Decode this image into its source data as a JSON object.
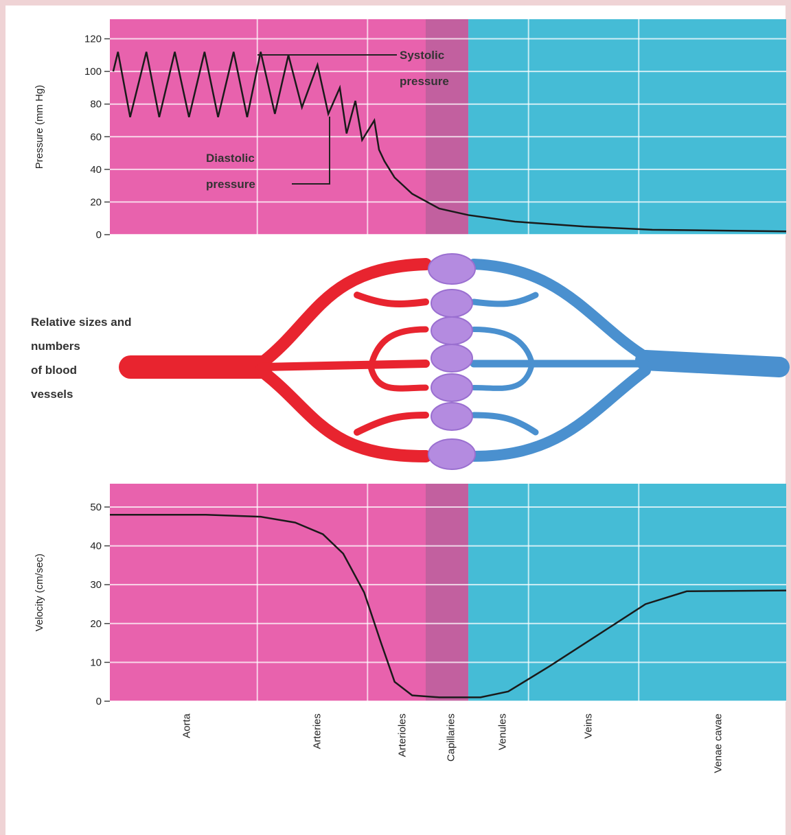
{
  "chart_data": [
    {
      "type": "line",
      "ylabel": "Pressure (mm Hg)",
      "ylim": [
        0,
        132
      ],
      "yticks": [
        0,
        20,
        40,
        60,
        80,
        100,
        120
      ],
      "xlim": [
        0,
        100
      ],
      "regions": [
        {
          "from": 0,
          "to": 46.7,
          "color": "#e862ad"
        },
        {
          "from": 46.7,
          "to": 53,
          "color": "#c2609f"
        },
        {
          "from": 53,
          "to": 100,
          "color": "#45bcd6"
        }
      ],
      "series": [
        {
          "color": "#1a1a1a",
          "x": [
            0.5,
            1.2,
            3.0,
            5.4,
            7.3,
            9.6,
            11.7,
            14.0,
            16.0,
            18.3,
            20.3,
            22.3,
            24.4,
            26.4,
            28.4,
            30.7,
            32.3,
            34.0,
            35.0,
            36.3,
            37.3,
            39.1,
            39.8,
            40.6,
            42.1,
            44.7,
            48.7,
            53.0,
            59.9,
            70.1,
            80.2,
            100
          ],
          "values": [
            100,
            112,
            72,
            112,
            72,
            112,
            72,
            112,
            72,
            112,
            72,
            112,
            74,
            110,
            78,
            104,
            74,
            90,
            62,
            82,
            58,
            70,
            52,
            45,
            35,
            25,
            16,
            12,
            8,
            5,
            3,
            2
          ]
        }
      ],
      "annotations": [
        [
          "Systolic",
          "pressure"
        ],
        [
          "Diastolic",
          "pressure"
        ]
      ]
    },
    {
      "type": "line",
      "ylabel": "Velocity (cm/sec)",
      "ylim": [
        0,
        56
      ],
      "yticks": [
        0,
        10,
        20,
        30,
        40,
        50
      ],
      "xlim": [
        0,
        100
      ],
      "regions": [
        {
          "from": 0,
          "to": 46.7,
          "color": "#e862ad"
        },
        {
          "from": 46.7,
          "to": 53,
          "color": "#c2609f"
        },
        {
          "from": 53,
          "to": 100,
          "color": "#45bcd6"
        }
      ],
      "xticks": [
        {
          "value": 11.2,
          "label": "Aorta"
        },
        {
          "value": 30.5,
          "label": "Arteries"
        },
        {
          "value": 43.1,
          "label": "Arterioles"
        },
        {
          "value": 50.3,
          "label": "Capillaries"
        },
        {
          "value": 57.9,
          "label": "Venules"
        },
        {
          "value": 70.6,
          "label": "Veins"
        },
        {
          "value": 89.8,
          "label": "Venae cavae"
        }
      ],
      "series": [
        {
          "color": "#1a1a1a",
          "x": [
            0,
            14.2,
            22.3,
            27.4,
            31.5,
            34.5,
            37.6,
            40.1,
            42.1,
            44.7,
            48.7,
            54.8,
            58.9,
            65.0,
            72.1,
            79.2,
            85.3,
            100
          ],
          "values": [
            48,
            48,
            47.5,
            46,
            43,
            38,
            28,
            15,
            5,
            1.5,
            1,
            1,
            2.5,
            9,
            17,
            25,
            28.3,
            28.5
          ]
        }
      ]
    }
  ],
  "diagram": {
    "label": [
      "Relative sizes and",
      "numbers",
      "of blood",
      "vessels"
    ]
  }
}
